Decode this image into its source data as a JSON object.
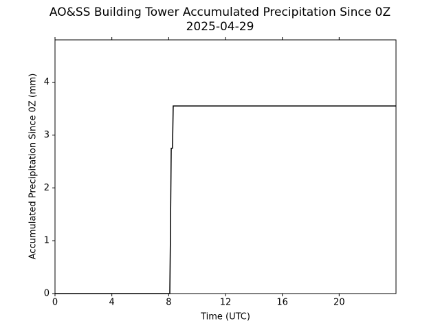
{
  "chart_data": {
    "type": "line",
    "title": "AO&SS Building Tower Accumulated Precipitation Since 0Z",
    "subtitle": "2025-04-29",
    "x_label": "Time (UTC)",
    "y_label": "Accumulated Precipitation Since 0Z (mm)",
    "x": [
      0,
      8.08,
      8.12,
      8.15,
      8.18,
      8.27,
      8.32,
      24
    ],
    "series": [
      {
        "name": "Accumulated Precipitation",
        "color": "#000000",
        "values": [
          0,
          0,
          1.0,
          1.85,
          2.75,
          2.75,
          3.55,
          3.55
        ]
      }
    ],
    "xlim": [
      0,
      24
    ],
    "xticks": [
      0,
      4,
      8,
      12,
      16,
      20
    ],
    "ylim": [
      0,
      4.8
    ],
    "yticks": [
      0,
      1,
      2,
      3,
      4
    ],
    "grid": false
  }
}
